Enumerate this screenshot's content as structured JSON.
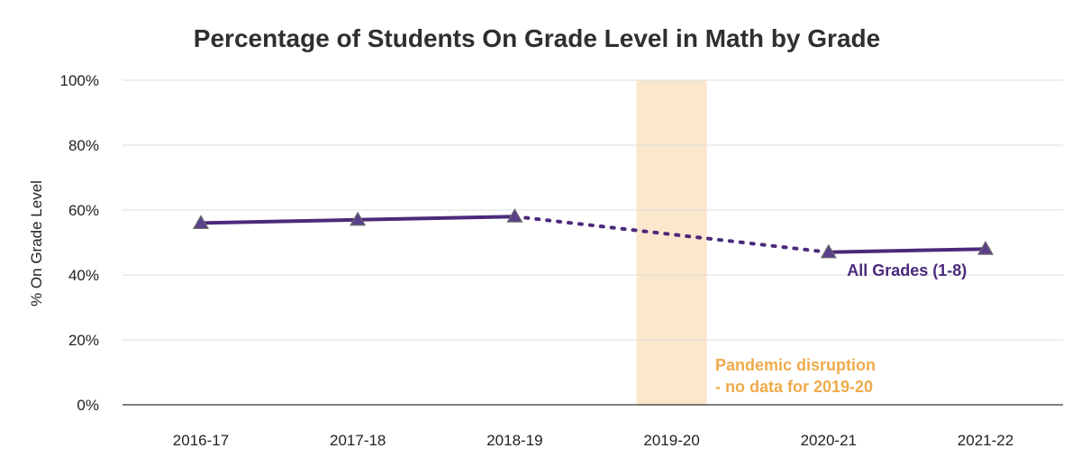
{
  "chart_data": {
    "type": "line",
    "title": "Percentage of Students On Grade Level in Math by Grade",
    "ylabel": "% On Grade Level",
    "xlabel": "",
    "categories": [
      "2016-17",
      "2017-18",
      "2018-19",
      "2019-20",
      "2020-21",
      "2021-22"
    ],
    "ylim": [
      0,
      100
    ],
    "yticks": [
      "0%",
      "20%",
      "40%",
      "60%",
      "80%",
      "100%"
    ],
    "ytick_values": [
      0,
      20,
      40,
      60,
      80,
      100
    ],
    "grid": true,
    "series": [
      {
        "name": "All Grades (1-8)",
        "values": [
          56,
          57,
          58,
          null,
          47,
          48
        ],
        "color": "#4b2a7b",
        "marker": "triangle"
      }
    ],
    "gap_segment": {
      "from": "2018-19",
      "to": "2020-21",
      "style": "dotted"
    },
    "highlight": {
      "category": "2019-20",
      "color": "#fbe7cc",
      "label_lines": [
        "Pandemic disruption",
        "- no data for 2019-20"
      ],
      "label_color": "#efab4a"
    }
  }
}
